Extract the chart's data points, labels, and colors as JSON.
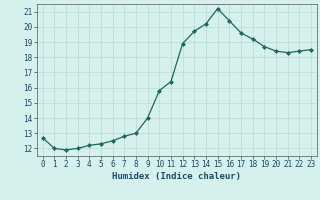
{
  "x": [
    0,
    1,
    2,
    3,
    4,
    5,
    6,
    7,
    8,
    9,
    10,
    11,
    12,
    13,
    14,
    15,
    16,
    17,
    18,
    19,
    20,
    21,
    22,
    23
  ],
  "y": [
    12.7,
    12.0,
    11.9,
    12.0,
    12.2,
    12.3,
    12.5,
    12.8,
    13.0,
    14.0,
    15.8,
    16.4,
    18.9,
    19.7,
    20.2,
    21.2,
    20.4,
    19.6,
    19.2,
    18.7,
    18.4,
    18.3,
    18.4,
    18.5
  ],
  "xlabel": "Humidex (Indice chaleur)",
  "xlim": [
    -0.5,
    23.5
  ],
  "ylim": [
    11.5,
    21.5
  ],
  "yticks": [
    12,
    13,
    14,
    15,
    16,
    17,
    18,
    19,
    20,
    21
  ],
  "xticks": [
    0,
    1,
    2,
    3,
    4,
    5,
    6,
    7,
    8,
    9,
    10,
    11,
    12,
    13,
    14,
    15,
    16,
    17,
    18,
    19,
    20,
    21,
    22,
    23
  ],
  "line_color": "#1a6b5a",
  "marker": "D",
  "marker_size": 2.0,
  "bg_color": "#d6f0ee",
  "grid_color": "#b8d8d4",
  "tick_label_fontsize": 5.5,
  "xlabel_fontsize": 6.5,
  "line_width": 0.9
}
